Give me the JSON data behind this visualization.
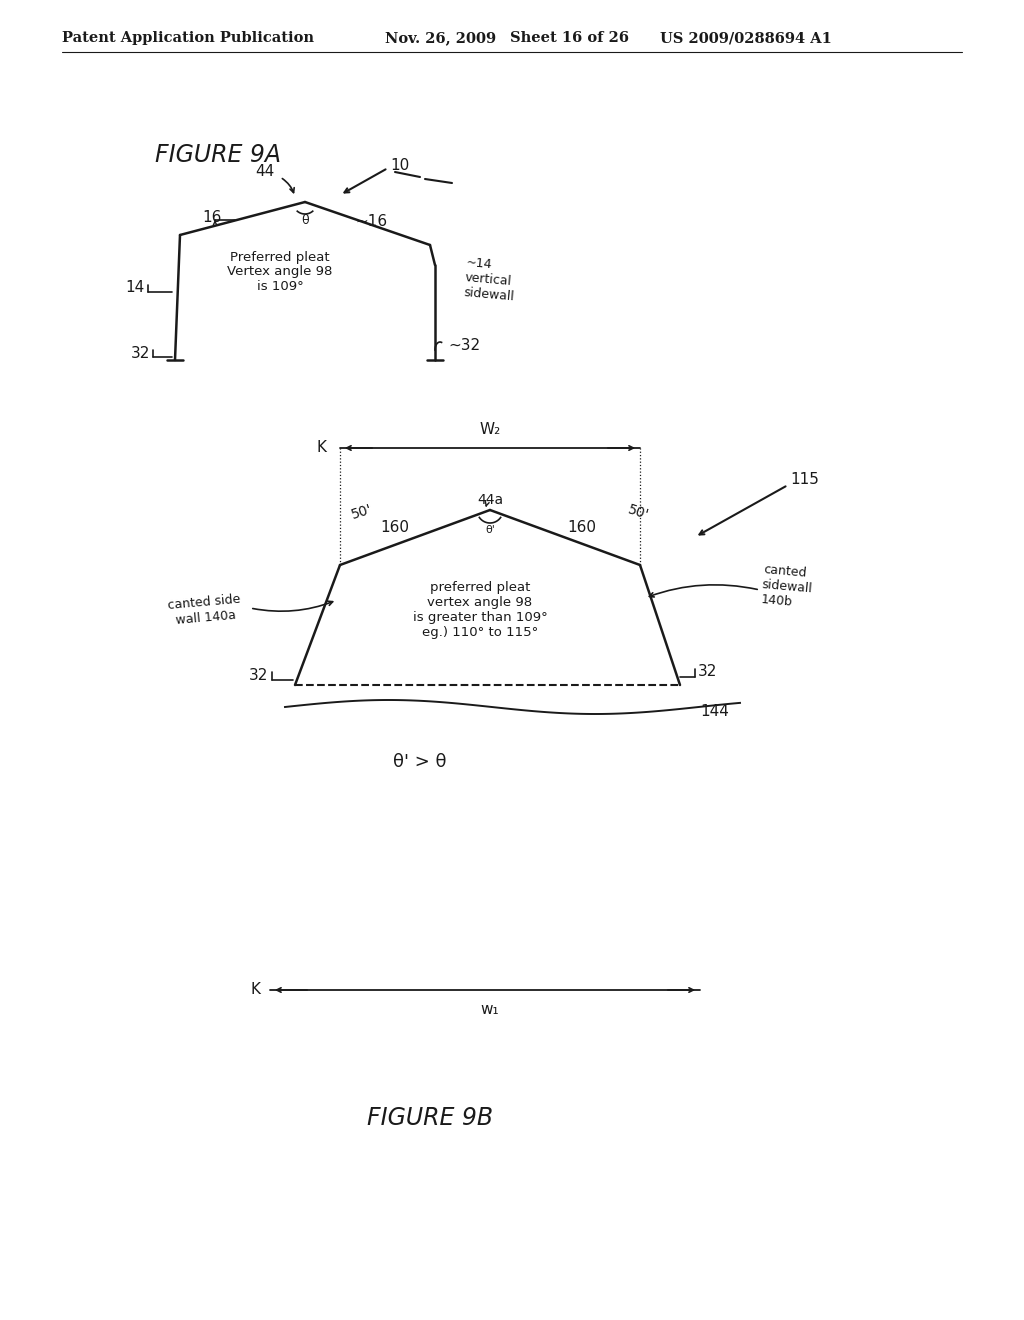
{
  "bg_color": "#ffffff",
  "line_color": "#1a1a1a",
  "text_color": "#1a1a1a",
  "header_left": "Patent Application Publication",
  "header_mid1": "Nov. 26, 2009",
  "header_mid2": "Sheet 16 of 26",
  "header_right": "US 2009/0288694 A1"
}
